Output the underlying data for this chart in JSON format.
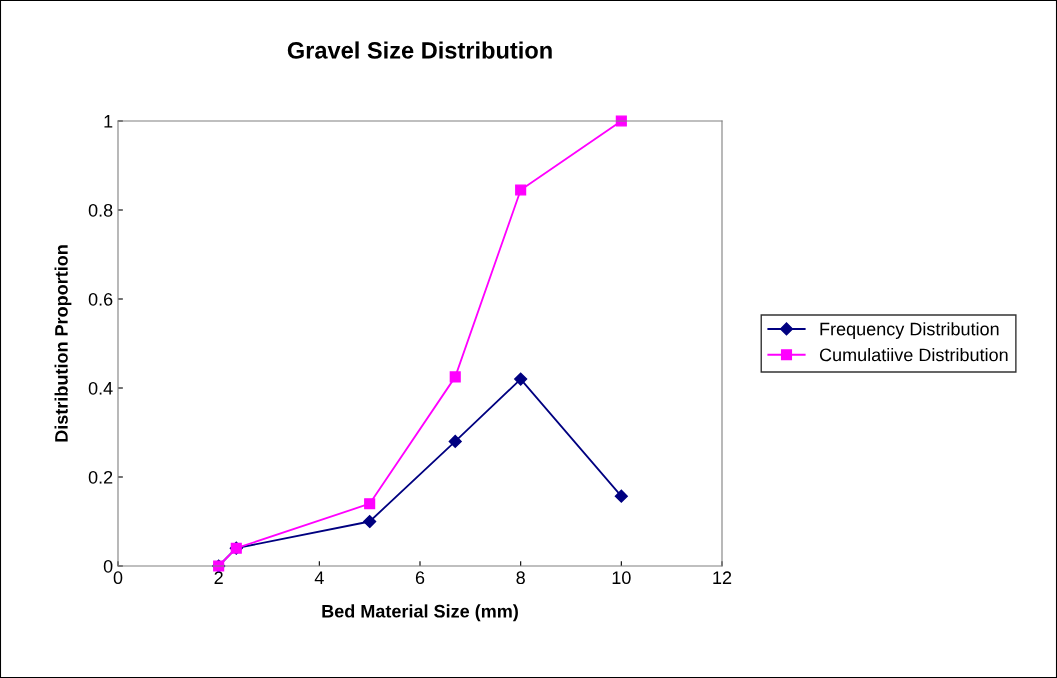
{
  "chart_data": {
    "type": "line",
    "title": "Gravel Size Distribution",
    "xlabel": "Bed Material Size (mm)",
    "ylabel": "Distribution Proportion",
    "series": [
      {
        "name": "Frequency Distribution",
        "color": "#000080",
        "marker": "diamond",
        "x": [
          2,
          2.35,
          5,
          6.7,
          8,
          10
        ],
        "values": [
          0,
          0.04,
          0.1,
          0.28,
          0.42,
          0.157
        ]
      },
      {
        "name": "Cumulatiive Distribution",
        "color": "#ff00ff",
        "marker": "square",
        "x": [
          2,
          2.35,
          5,
          6.7,
          8,
          10
        ],
        "values": [
          0,
          0.04,
          0.14,
          0.425,
          0.845,
          1
        ]
      }
    ],
    "xlim": [
      0,
      12
    ],
    "xticks": [
      0,
      2,
      4,
      6,
      8,
      10,
      12
    ],
    "ylim": [
      0,
      1
    ],
    "yticks": [
      0,
      0.2,
      0.4,
      0.6,
      0.8,
      1
    ],
    "grid": false,
    "legend": "right",
    "line_style": "solid"
  }
}
